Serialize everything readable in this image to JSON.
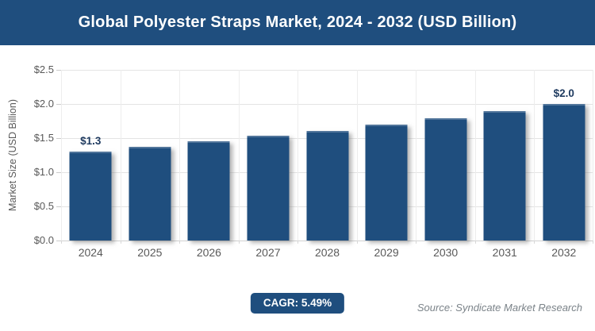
{
  "title": "Global Polyester Straps Market, 2024 - 2032 (USD Billion)",
  "colors": {
    "primary": "#1F4E7E",
    "title_text": "#FFFFFF",
    "axis_text": "#595959",
    "gridline": "#E4E4E4",
    "data_label": "#1E3A5F",
    "source_text": "#7B8389"
  },
  "chart_data": {
    "type": "bar",
    "title": "Global Polyester Straps Market, 2024 - 2032 (USD Billion)",
    "categories": [
      "2024",
      "2025",
      "2026",
      "2027",
      "2028",
      "2029",
      "2030",
      "2031",
      "2032"
    ],
    "values": [
      1.3,
      1.37,
      1.45,
      1.53,
      1.61,
      1.7,
      1.79,
      1.89,
      2.0
    ],
    "value_labels": [
      {
        "index": 0,
        "label": "$1.3"
      },
      {
        "index": 8,
        "label": "$2.0"
      }
    ],
    "xlabel": "",
    "ylabel": "Market Size (USD Billion)",
    "ylim": [
      0,
      2.5
    ],
    "ytick_step": 0.5,
    "ytick_labels": [
      "$0.0",
      "$0.5",
      "$1.0",
      "$1.5",
      "$2.0",
      "$2.5"
    ],
    "grid": true,
    "legend": false,
    "bar_color": "#1F4E7E",
    "cagr": "5.49%"
  },
  "footer": {
    "cagr_label": "CAGR: 5.49%",
    "source": "Source: Syndicate Market Research"
  }
}
